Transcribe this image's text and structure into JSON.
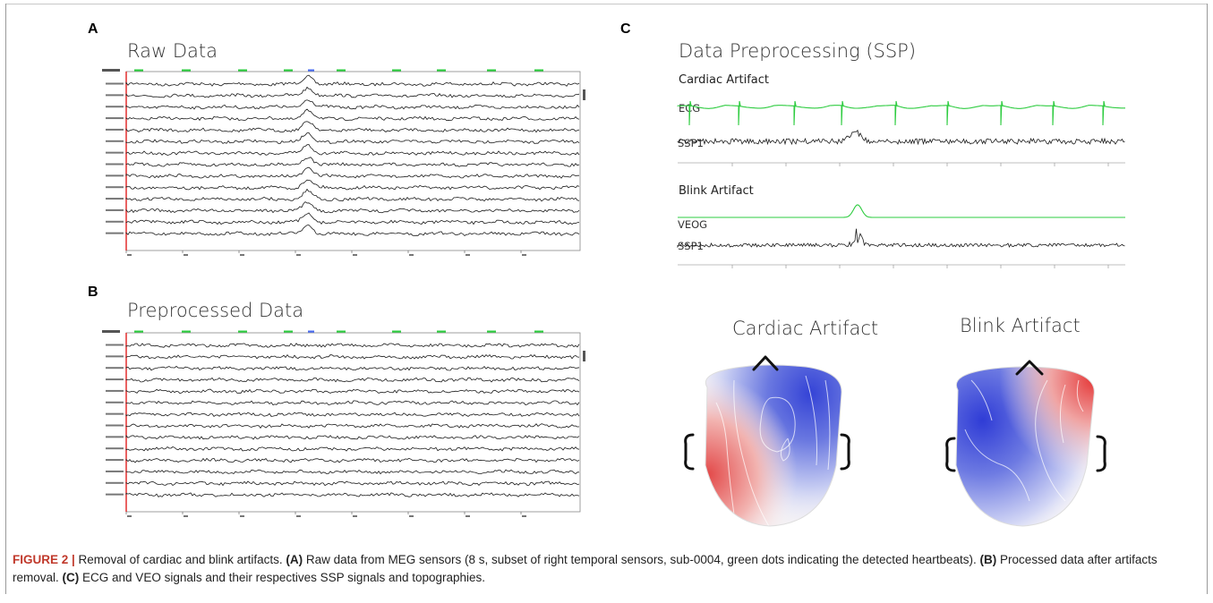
{
  "panels": {
    "a": {
      "letter": "A",
      "title": "Raw Data"
    },
    "b": {
      "letter": "B",
      "title": "Preprocessed Data"
    },
    "c": {
      "letter": "C",
      "title": "Data Preprocessing (SSP)",
      "cardiac": {
        "heading": "Cardiac Artifact",
        "signal_label": "ECG",
        "ssp_label": "SSP1"
      },
      "blink": {
        "heading": "Blink Artifact",
        "signal_label": "VEOG",
        "ssp_label": "SSP1"
      },
      "topo_cardiac_title": "Cardiac Artifact",
      "topo_blink_title": "Blink Artifact"
    }
  },
  "caption": {
    "label": "FIGURE 2 |",
    "intro": " Removal of cardiac and blink artifacts. ",
    "a_tag": "(A)",
    "a_text": " Raw data from MEG sensors (8 s, subset of right temporal sensors, sub-0004, green dots indicating the detected heartbeats). ",
    "b_tag": "(B)",
    "b_text": " Processed data after artifacts removal. ",
    "c_tag": "(C)",
    "c_text": " ECG and VEO signals and their respectives SSP signals and topographies."
  },
  "colors": {
    "trace": "#1a1a1a",
    "ecg": "#2ecc40",
    "red_marker": "#e02020",
    "topo_red": "#e8383b",
    "topo_blue": "#2f3cd6"
  }
}
